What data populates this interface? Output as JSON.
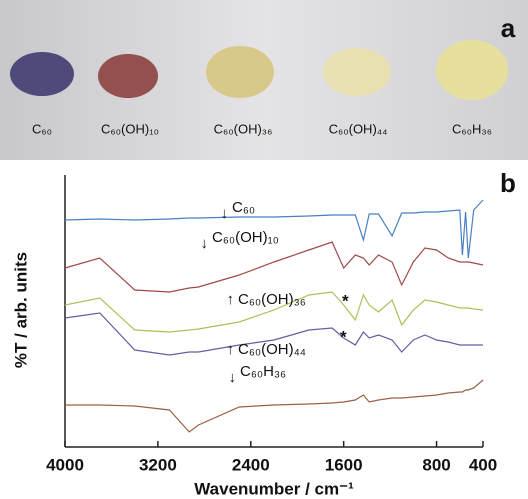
{
  "photo_panel": {
    "label": "a",
    "captions": [
      "C₆₀",
      "C₆₀(OH)₁₀",
      "C₆₀(OH)₃₆",
      "C₆₀(OH)₄₄",
      "C₆₀H₃₆"
    ]
  },
  "chart_data": {
    "type": "line",
    "panel_label": "b",
    "xlabel": "Wavenumber / cm⁻¹",
    "ylabel": "%T / arb. units",
    "xlim": [
      4000,
      400
    ],
    "xticks": [
      4000,
      3200,
      2400,
      1600,
      800,
      400
    ],
    "ylim": [
      0,
      272
    ],
    "x": [
      4000,
      3700,
      3400,
      3100,
      2930,
      2850,
      2500,
      2200,
      1900,
      1700,
      1600,
      1500,
      1430,
      1380,
      1300,
      1183,
      1100,
      1000,
      900,
      800,
      700,
      600,
      577,
      550,
      527,
      480,
      400
    ],
    "series": [
      {
        "name": "C₆₀",
        "color": "#4a7fc0",
        "values": [
          227,
          228,
          227,
          228,
          229,
          229,
          230,
          230,
          231,
          232,
          232,
          232,
          207,
          233,
          233,
          211,
          234,
          234,
          235,
          235,
          236,
          237,
          192,
          235,
          189,
          237,
          247
        ]
      },
      {
        "name": "C₆₀(OH)₁₀",
        "color": "#a04848",
        "values": [
          179,
          189,
          157,
          155,
          159,
          160,
          172,
          185,
          197,
          205,
          179,
          192,
          189,
          182,
          192,
          185,
          162,
          185,
          199,
          197,
          189,
          185,
          185,
          185,
          185,
          184,
          182
        ]
      },
      {
        "name": "C₆₀(OH)₃₆",
        "color": "#b4bc5a",
        "values": [
          142,
          149,
          117,
          115,
          117,
          118,
          125,
          137,
          152,
          155,
          142,
          127,
          152,
          142,
          135,
          147,
          122,
          137,
          147,
          145,
          142,
          139,
          139,
          139,
          139,
          138,
          137
        ]
      },
      {
        "name": "C₆₀(OH)₄₄",
        "color": "#6a5aa0",
        "values": [
          129,
          134,
          97,
          92,
          95,
          95,
          102,
          107,
          117,
          119,
          109,
          102,
          115,
          109,
          112,
          107,
          95,
          107,
          112,
          107,
          105,
          102,
          102,
          102,
          102,
          102,
          102
        ]
      },
      {
        "name": "C₆₀H₃₆",
        "color": "#9a6040",
        "values": [
          42,
          42,
          41,
          37,
          15,
          22,
          40,
          42,
          43,
          44,
          45,
          47,
          52,
          45,
          47,
          49,
          49,
          50,
          51,
          52,
          54,
          55,
          55,
          57,
          57,
          59,
          67
        ]
      }
    ],
    "annotations": [
      "*",
      "*"
    ]
  }
}
